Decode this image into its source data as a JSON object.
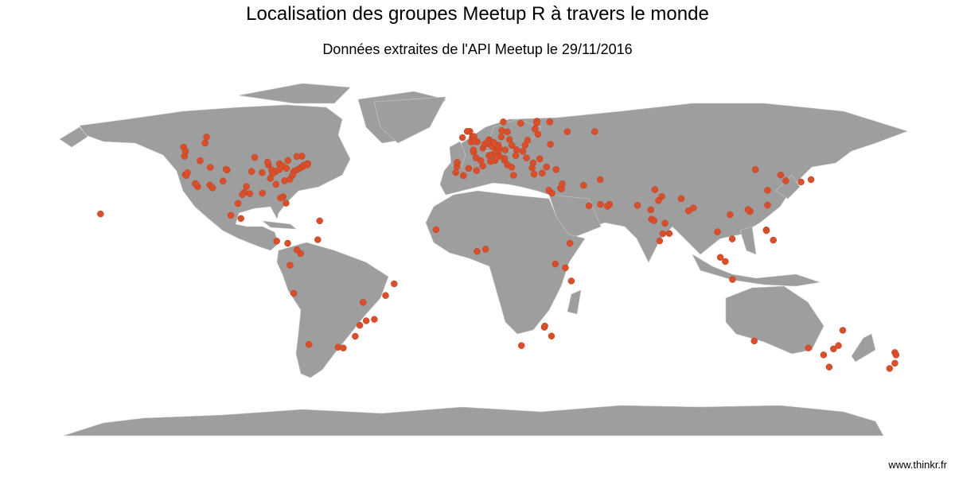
{
  "title": "Localisation des groupes Meetup R à travers le monde",
  "subtitle": "Données extraites de l'API Meetup le 29/11/2016",
  "caption": "www.thinkr.fr",
  "colors": {
    "land": "#9e9e9e",
    "border": "#c9c9c9",
    "point": "#d94f2b",
    "background": "#ffffff"
  },
  "chart_data": {
    "type": "scatter",
    "projection": "equirectangular",
    "points": [
      [
        -123.1,
        49.3
      ],
      [
        -122.7,
        45.5
      ],
      [
        -122.3,
        47.6
      ],
      [
        -122.4,
        37.8
      ],
      [
        -122.0,
        37.4
      ],
      [
        -121.5,
        38.6
      ],
      [
        -118.2,
        34.0
      ],
      [
        -117.2,
        32.7
      ],
      [
        -117.9,
        33.7
      ],
      [
        -111.9,
        40.8
      ],
      [
        -112.1,
        33.4
      ],
      [
        -104.9,
        39.7
      ],
      [
        -105.3,
        40.0
      ],
      [
        -97.7,
        30.3
      ],
      [
        -96.8,
        32.8
      ],
      [
        -95.4,
        29.8
      ],
      [
        -98.5,
        29.4
      ],
      [
        -106.6,
        35.1
      ],
      [
        -93.3,
        45.0
      ],
      [
        -90.2,
        38.6
      ],
      [
        -94.6,
        39.1
      ],
      [
        -87.6,
        41.9
      ],
      [
        -87.9,
        43.0
      ],
      [
        -86.2,
        39.8
      ],
      [
        -83.0,
        42.3
      ],
      [
        -84.5,
        39.1
      ],
      [
        -82.9,
        40.0
      ],
      [
        -81.7,
        41.5
      ],
      [
        -80.0,
        40.4
      ],
      [
        -84.4,
        33.7
      ],
      [
        -80.8,
        35.2
      ],
      [
        -78.6,
        35.8
      ],
      [
        -77.0,
        38.9
      ],
      [
        -76.6,
        39.3
      ],
      [
        -75.2,
        40.0
      ],
      [
        -74.0,
        40.7
      ],
      [
        -73.2,
        41.2
      ],
      [
        -72.7,
        41.8
      ],
      [
        -71.1,
        42.4
      ],
      [
        -71.4,
        41.8
      ],
      [
        -73.6,
        45.5
      ],
      [
        -79.4,
        43.7
      ],
      [
        -75.7,
        45.4
      ],
      [
        -80.2,
        25.8
      ],
      [
        -81.4,
        28.5
      ],
      [
        -82.5,
        28.0
      ],
      [
        -90.1,
        30.0
      ],
      [
        -86.8,
        36.2
      ],
      [
        -85.8,
        38.3
      ],
      [
        -77.5,
        37.5
      ],
      [
        -114.1,
        51.0
      ],
      [
        -113.5,
        53.5
      ],
      [
        -116.2,
        43.6
      ],
      [
        -111.0,
        32.2
      ],
      [
        -99.1,
        19.4
      ],
      [
        -103.3,
        20.7
      ],
      [
        -100.3,
        25.7
      ],
      [
        -66.1,
        18.4
      ],
      [
        -84.1,
        9.9
      ],
      [
        -79.5,
        9.0
      ],
      [
        -74.1,
        4.7
      ],
      [
        -75.6,
        6.2
      ],
      [
        -66.9,
        10.5
      ],
      [
        -78.5,
        -0.2
      ],
      [
        -77.0,
        -12.0
      ],
      [
        -70.6,
        -33.4
      ],
      [
        -58.4,
        -34.6
      ],
      [
        -56.2,
        -34.9
      ],
      [
        -46.6,
        -23.5
      ],
      [
        -43.2,
        -22.9
      ],
      [
        -47.9,
        -15.8
      ],
      [
        -38.5,
        -12.9
      ],
      [
        -34.9,
        -8.0
      ],
      [
        -49.3,
        -25.4
      ],
      [
        -51.2,
        -30.0
      ],
      [
        -157.9,
        21.3
      ],
      [
        -0.1,
        51.5
      ],
      [
        -2.2,
        53.5
      ],
      [
        -1.9,
        52.5
      ],
      [
        -3.2,
        55.9
      ],
      [
        -4.3,
        55.9
      ],
      [
        -6.3,
        53.3
      ],
      [
        -1.5,
        53.8
      ],
      [
        -2.6,
        51.5
      ],
      [
        -1.3,
        51.8
      ],
      [
        2.35,
        48.9
      ],
      [
        4.8,
        45.8
      ],
      [
        1.4,
        43.6
      ],
      [
        -0.6,
        44.8
      ],
      [
        5.4,
        43.3
      ],
      [
        7.3,
        43.7
      ],
      [
        -1.6,
        47.2
      ],
      [
        3.1,
        50.6
      ],
      [
        7.8,
        48.6
      ],
      [
        -1.7,
        48.1
      ],
      [
        2.2,
        41.4
      ],
      [
        -3.7,
        40.4
      ],
      [
        -0.4,
        39.5
      ],
      [
        -5.9,
        37.4
      ],
      [
        -9.1,
        38.7
      ],
      [
        -8.6,
        41.2
      ],
      [
        -8.5,
        42.9
      ],
      [
        4.9,
        52.4
      ],
      [
        4.5,
        51.9
      ],
      [
        4.4,
        50.8
      ],
      [
        5.6,
        50.6
      ],
      [
        6.1,
        49.6
      ],
      [
        8.7,
        50.1
      ],
      [
        13.4,
        52.5
      ],
      [
        10.0,
        53.6
      ],
      [
        11.6,
        48.1
      ],
      [
        9.2,
        48.8
      ],
      [
        6.8,
        51.2
      ],
      [
        7.0,
        50.9
      ],
      [
        8.5,
        47.4
      ],
      [
        6.1,
        46.2
      ],
      [
        7.4,
        46.9
      ],
      [
        16.4,
        48.2
      ],
      [
        14.4,
        50.1
      ],
      [
        19.0,
        47.5
      ],
      [
        21.0,
        52.2
      ],
      [
        19.9,
        50.1
      ],
      [
        12.5,
        55.7
      ],
      [
        10.2,
        56.2
      ],
      [
        18.1,
        59.3
      ],
      [
        10.8,
        59.9
      ],
      [
        24.9,
        60.2
      ],
      [
        24.1,
        56.9
      ],
      [
        25.3,
        54.7
      ],
      [
        24.8,
        59.4
      ],
      [
        9.2,
        45.5
      ],
      [
        12.5,
        41.9
      ],
      [
        11.3,
        43.8
      ],
      [
        14.3,
        40.9
      ],
      [
        7.7,
        45.1
      ],
      [
        11.3,
        44.5
      ],
      [
        15.1,
        37.5
      ],
      [
        23.7,
        37.98
      ],
      [
        22.9,
        40.6
      ],
      [
        26.1,
        44.4
      ],
      [
        23.3,
        42.7
      ],
      [
        20.5,
        44.8
      ],
      [
        16.0,
        45.8
      ],
      [
        28.9,
        41.0
      ],
      [
        32.9,
        39.9
      ],
      [
        27.1,
        38.4
      ],
      [
        30.5,
        50.5
      ],
      [
        37.6,
        55.8
      ],
      [
        30.3,
        59.9
      ],
      [
        49.1,
        55.8
      ],
      [
        34.8,
        32.1
      ],
      [
        35.2,
        31.8
      ],
      [
        35.5,
        33.9
      ],
      [
        31.2,
        30.0
      ],
      [
        29.9,
        31.2
      ],
      [
        44.4,
        33.3
      ],
      [
        51.4,
        35.7
      ],
      [
        55.3,
        25.3
      ],
      [
        54.4,
        24.5
      ],
      [
        51.5,
        25.3
      ],
      [
        46.7,
        24.7
      ],
      [
        3.4,
        6.5
      ],
      [
        -0.2,
        5.6
      ],
      [
        -17.4,
        14.7
      ],
      [
        38.7,
        9.0
      ],
      [
        36.8,
        -1.3
      ],
      [
        32.6,
        0.3
      ],
      [
        39.3,
        -6.8
      ],
      [
        28.0,
        -26.2
      ],
      [
        28.2,
        -25.7
      ],
      [
        18.4,
        -33.9
      ],
      [
        31.0,
        -29.9
      ],
      [
        72.9,
        19.1
      ],
      [
        73.9,
        18.5
      ],
      [
        77.6,
        12.97
      ],
      [
        80.3,
        13.1
      ],
      [
        78.5,
        17.4
      ],
      [
        77.2,
        28.6
      ],
      [
        88.4,
        22.6
      ],
      [
        76.3,
        10.0
      ],
      [
        72.6,
        23.0
      ],
      [
        75.8,
        26.9
      ],
      [
        67.0,
        24.9
      ],
      [
        74.3,
        31.5
      ],
      [
        90.4,
        23.8
      ],
      [
        85.3,
        27.7
      ],
      [
        100.5,
        13.8
      ],
      [
        103.8,
        1.35
      ],
      [
        101.7,
        3.1
      ],
      [
        106.8,
        -6.2
      ],
      [
        106.7,
        10.8
      ],
      [
        105.8,
        21.0
      ],
      [
        114.2,
        22.3
      ],
      [
        113.3,
        23.1
      ],
      [
        121.5,
        31.2
      ],
      [
        116.4,
        39.9
      ],
      [
        121.5,
        25.0
      ],
      [
        120.98,
        14.6
      ],
      [
        121.0,
        14.3
      ],
      [
        123.9,
        10.3
      ],
      [
        126.98,
        37.6
      ],
      [
        129.1,
        35.2
      ],
      [
        139.7,
        35.7
      ],
      [
        135.5,
        34.7
      ],
      [
        115.9,
        -31.95
      ],
      [
        138.6,
        -34.9
      ],
      [
        144.96,
        -37.8
      ],
      [
        147.3,
        -42.9
      ],
      [
        149.1,
        -35.3
      ],
      [
        151.2,
        -33.9
      ],
      [
        153.0,
        -27.5
      ],
      [
        174.8,
        -36.8
      ],
      [
        175.3,
        -37.8
      ],
      [
        174.8,
        -41.3
      ],
      [
        172.6,
        -43.5
      ]
    ]
  }
}
